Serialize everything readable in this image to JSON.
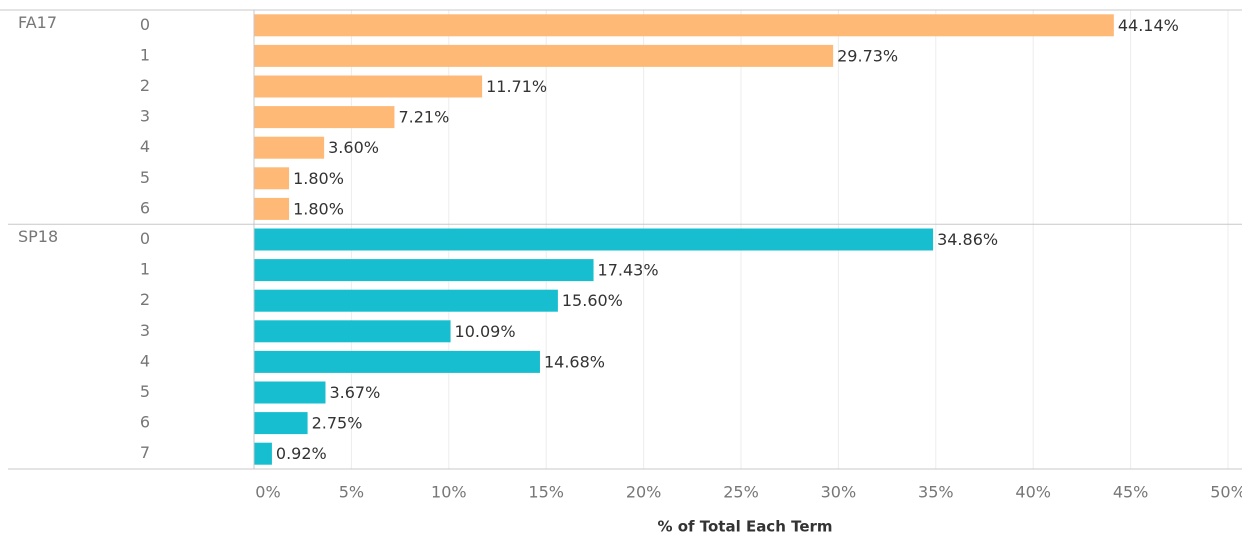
{
  "chart_data": {
    "type": "bar",
    "orientation": "horizontal",
    "xlabel": "% of Total Each Term",
    "groups": [
      {
        "name": "FA17",
        "color": "#ffb977",
        "categories": [
          "0",
          "1",
          "2",
          "3",
          "4",
          "5",
          "6"
        ],
        "values": [
          44.14,
          29.73,
          11.71,
          7.21,
          3.6,
          1.8,
          1.8
        ],
        "value_labels": [
          "44.14%",
          "29.73%",
          "11.71%",
          "7.21%",
          "3.60%",
          "1.80%",
          "1.80%"
        ]
      },
      {
        "name": "SP18",
        "color": "#17becf",
        "categories": [
          "0",
          "1",
          "2",
          "3",
          "4",
          "5",
          "6",
          "7"
        ],
        "values": [
          34.86,
          17.43,
          15.6,
          10.09,
          14.68,
          3.67,
          2.75,
          0.92
        ],
        "value_labels": [
          "34.86%",
          "17.43%",
          "15.60%",
          "10.09%",
          "14.68%",
          "3.67%",
          "2.75%",
          "0.92%"
        ]
      }
    ],
    "xlim": [
      0,
      50
    ],
    "xticks": [
      {
        "value": 0,
        "label": "0%"
      },
      {
        "value": 5,
        "label": "5%"
      },
      {
        "value": 10,
        "label": "10%"
      },
      {
        "value": 15,
        "label": "15%"
      },
      {
        "value": 20,
        "label": "20%"
      },
      {
        "value": 25,
        "label": "25%"
      },
      {
        "value": 30,
        "label": "30%"
      },
      {
        "value": 35,
        "label": "35%"
      },
      {
        "value": 40,
        "label": "40%"
      },
      {
        "value": 45,
        "label": "45%"
      },
      {
        "value": 50,
        "label": "50%"
      }
    ],
    "grid": true
  }
}
